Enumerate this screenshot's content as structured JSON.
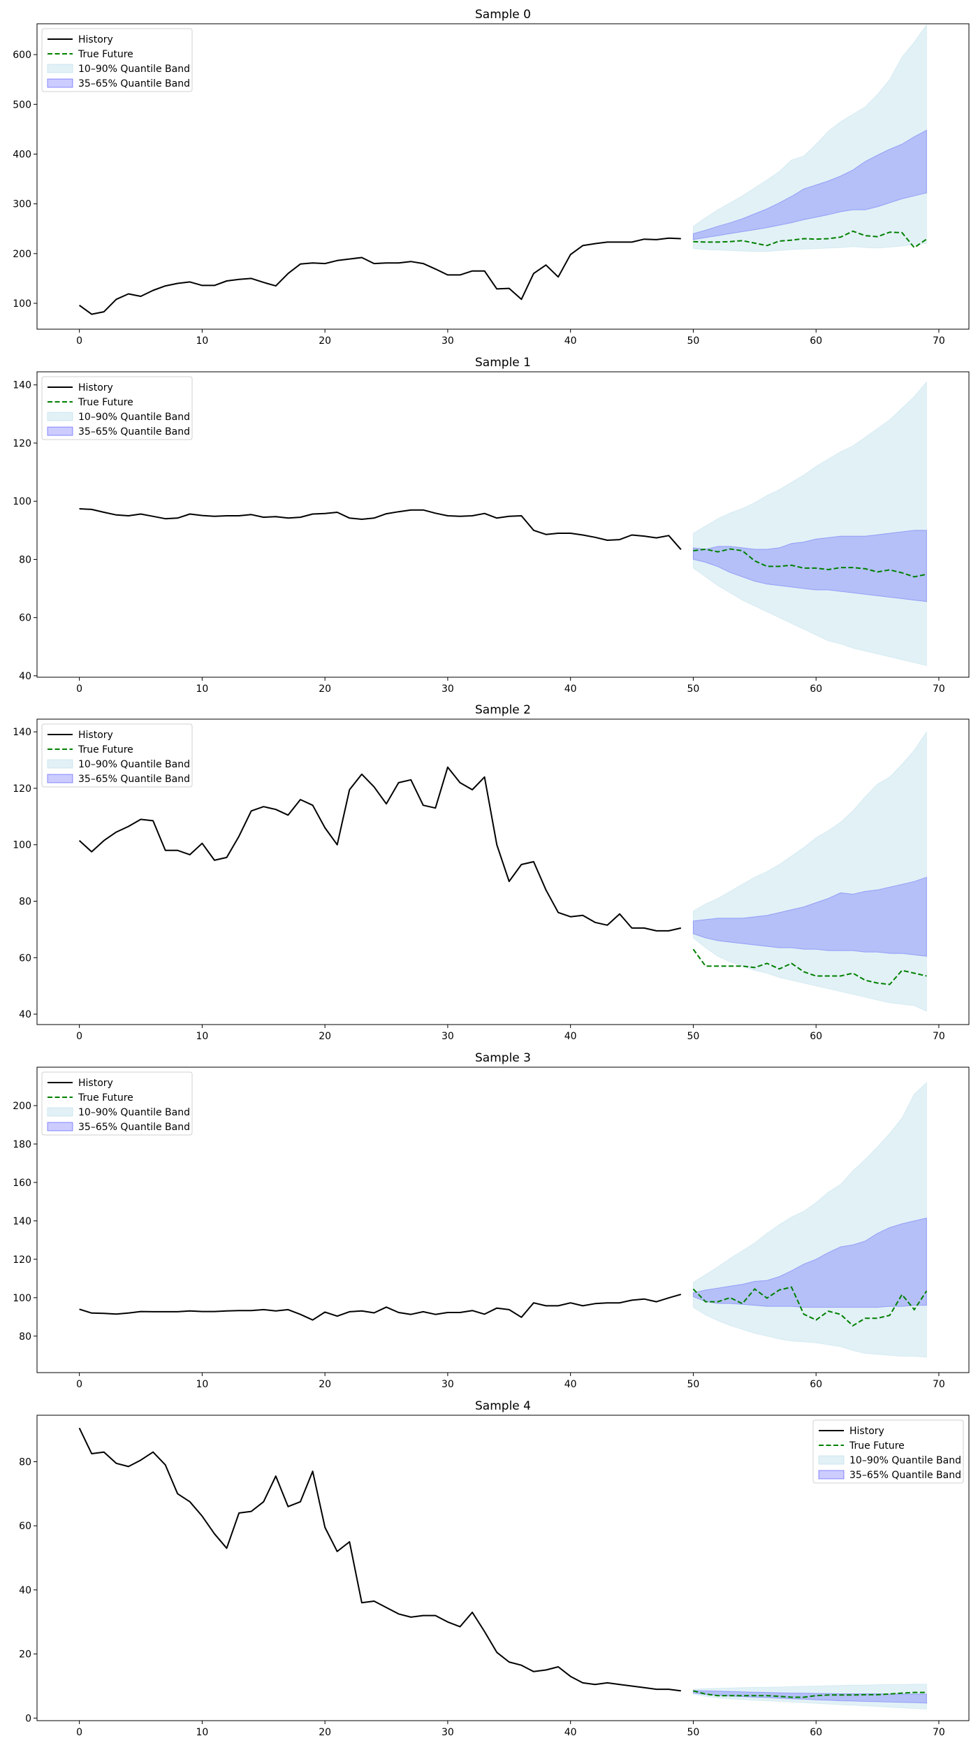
{
  "legend_labels": {
    "history": "History",
    "true_future": "True Future",
    "band_outer": "10–90% Quantile Band",
    "band_inner": "35–65% Quantile Band"
  },
  "colors": {
    "history": "#000000",
    "true_future": "#008000",
    "band_outer": "#add8e6",
    "band_inner": "#0000ff"
  },
  "chart_data": [
    {
      "type": "line",
      "title": "Sample 0",
      "xlim": [
        -3.45,
        72.45
      ],
      "ylim": [
        48,
        662
      ],
      "xticks": [
        0,
        10,
        20,
        30,
        40,
        50,
        60,
        70
      ],
      "yticks": [
        100,
        200,
        300,
        400,
        500,
        600
      ],
      "legend_position": "upper left",
      "history": {
        "x_start": 0,
        "values": [
          96,
          78,
          83,
          108,
          119,
          114,
          126,
          135,
          140,
          143,
          136,
          136,
          145,
          148,
          150,
          142,
          135,
          160,
          179,
          181,
          180,
          186,
          189,
          192,
          180,
          181,
          181,
          184,
          180,
          169,
          157,
          157,
          165,
          165,
          129,
          130,
          108,
          160,
          177,
          153,
          198,
          216,
          220,
          223,
          223,
          223,
          229,
          228,
          231,
          230
        ]
      },
      "true_future": {
        "x_start": 50,
        "values": [
          224,
          223,
          223,
          224,
          226,
          221,
          216,
          225,
          227,
          230,
          229,
          230,
          233,
          245,
          236,
          234,
          243,
          242,
          212,
          229
        ]
      },
      "band_10_90": {
        "x_start": 50,
        "lower": [
          210,
          208,
          207,
          206,
          205,
          204,
          204,
          206,
          208,
          209,
          210,
          211,
          212,
          214,
          212,
          211,
          213,
          215,
          218,
          220
        ],
        "upper": [
          255,
          272,
          288,
          302,
          316,
          332,
          348,
          365,
          388,
          396,
          420,
          446,
          465,
          480,
          495,
          520,
          550,
          595,
          625,
          660
        ]
      },
      "band_35_65": {
        "x_start": 50,
        "lower": [
          228,
          232,
          236,
          240,
          244,
          248,
          252,
          257,
          262,
          268,
          273,
          278,
          284,
          288,
          288,
          294,
          302,
          310,
          316,
          322
        ],
        "upper": [
          240,
          247,
          255,
          262,
          270,
          280,
          290,
          302,
          315,
          330,
          338,
          346,
          356,
          368,
          385,
          398,
          410,
          420,
          435,
          448
        ]
      }
    },
    {
      "type": "line",
      "title": "Sample 1",
      "xlim": [
        -3.45,
        72.45
      ],
      "ylim": [
        39.5,
        144.5
      ],
      "xticks": [
        0,
        10,
        20,
        30,
        40,
        50,
        60,
        70
      ],
      "yticks": [
        40,
        60,
        80,
        100,
        120,
        140
      ],
      "legend_position": "upper left",
      "history": {
        "x_start": 0,
        "values": [
          97.4,
          97.2,
          96.2,
          95.3,
          95.0,
          95.6,
          94.8,
          94.0,
          94.2,
          95.6,
          95.1,
          94.8,
          95.0,
          95.0,
          95.4,
          94.5,
          94.7,
          94.2,
          94.5,
          95.6,
          95.8,
          96.2,
          94.2,
          93.8,
          94.2,
          95.7,
          96.4,
          97.0,
          97.0,
          95.9,
          95.0,
          94.8,
          95.0,
          95.8,
          94.2,
          94.8,
          95.0,
          90.0,
          88.6,
          89.0,
          89.0,
          88.4,
          87.6,
          86.6,
          86.8,
          88.4,
          88.0,
          87.4,
          88.2,
          83.4
        ]
      },
      "true_future": {
        "x_start": 50,
        "values": [
          83.0,
          83.5,
          82.6,
          83.6,
          83.0,
          79.5,
          77.6,
          77.6,
          78.0,
          77.0,
          77.0,
          76.5,
          77.2,
          77.2,
          76.8,
          75.7,
          76.4,
          75.4,
          74.0,
          74.9
        ]
      },
      "band_10_90": {
        "x_start": 50,
        "lower": [
          77.0,
          74.0,
          71.0,
          68.5,
          66.0,
          64.0,
          62.0,
          60.0,
          58.0,
          56.0,
          54.0,
          52.0,
          51.0,
          49.5,
          48.5,
          47.5,
          46.5,
          45.5,
          44.5,
          43.5
        ],
        "upper": [
          89.0,
          91.5,
          94.0,
          96.0,
          97.5,
          99.5,
          102.0,
          104.0,
          106.5,
          109.0,
          112.0,
          114.5,
          117.0,
          119.0,
          122.0,
          125.0,
          128.0,
          132.0,
          136.0,
          141.0
        ]
      },
      "band_35_65": {
        "x_start": 50,
        "lower": [
          80.0,
          79.0,
          77.5,
          75.5,
          74.0,
          72.5,
          71.5,
          71.0,
          70.5,
          70.0,
          69.5,
          69.5,
          69.0,
          68.5,
          68.0,
          67.5,
          67.0,
          66.5,
          66.0,
          65.5
        ],
        "upper": [
          84.0,
          83.5,
          84.5,
          84.5,
          84.0,
          83.5,
          83.5,
          84.0,
          85.5,
          86.0,
          87.0,
          87.5,
          88.0,
          88.0,
          88.0,
          88.5,
          89.0,
          89.5,
          90.0,
          90.0
        ]
      }
    },
    {
      "type": "line",
      "title": "Sample 2",
      "xlim": [
        -3.45,
        72.45
      ],
      "ylim": [
        36.3,
        144.5
      ],
      "xticks": [
        0,
        10,
        20,
        30,
        40,
        50,
        60,
        70
      ],
      "yticks": [
        40,
        60,
        80,
        100,
        120,
        140
      ],
      "legend_position": "upper left",
      "history": {
        "x_start": 0,
        "values": [
          101.5,
          97.5,
          101.5,
          104.5,
          106.5,
          109.0,
          108.5,
          98.0,
          98.0,
          96.5,
          100.5,
          94.5,
          95.5,
          103.0,
          112.0,
          113.5,
          112.5,
          110.5,
          116.0,
          114.0,
          106.0,
          100.0,
          119.5,
          125.0,
          120.5,
          114.5,
          122.0,
          123.0,
          114.0,
          113.0,
          127.5,
          122.0,
          119.5,
          124.0,
          100.0,
          87.0,
          93.0,
          94.0,
          84.0,
          76.0,
          74.5,
          75.0,
          72.5,
          71.5,
          75.5,
          70.5,
          70.5,
          69.5,
          69.5,
          70.5
        ]
      },
      "true_future": {
        "x_start": 50,
        "values": [
          63.0,
          57.0,
          57.0,
          57.0,
          57.0,
          56.5,
          58.0,
          56.0,
          58.0,
          55.0,
          53.5,
          53.5,
          53.5,
          54.5,
          52.0,
          51.0,
          50.5,
          55.5,
          54.5,
          53.5
        ]
      },
      "band_10_90": {
        "x_start": 50,
        "lower": [
          67.0,
          63.5,
          60.5,
          58.5,
          57.0,
          55.5,
          54.5,
          53.0,
          52.0,
          51.0,
          50.0,
          49.0,
          48.0,
          47.0,
          46.0,
          45.0,
          44.0,
          43.5,
          43.0,
          41.0
        ],
        "upper": [
          76.5,
          79.0,
          81.0,
          83.5,
          86.0,
          88.5,
          90.5,
          93.0,
          96.0,
          99.0,
          102.5,
          105.0,
          108.0,
          112.0,
          117.0,
          121.5,
          124.0,
          128.5,
          133.5,
          140.0
        ]
      },
      "band_35_65": {
        "x_start": 50,
        "lower": [
          68.5,
          67.0,
          66.0,
          65.5,
          65.0,
          64.5,
          64.0,
          63.5,
          63.5,
          63.0,
          63.0,
          62.5,
          62.5,
          62.5,
          62.0,
          62.0,
          61.5,
          61.5,
          61.0,
          60.5
        ],
        "upper": [
          73.0,
          73.5,
          74.0,
          74.0,
          74.0,
          74.5,
          75.0,
          76.0,
          77.0,
          78.0,
          79.5,
          81.0,
          83.0,
          82.5,
          83.5,
          84.0,
          85.0,
          86.0,
          87.0,
          88.5
        ]
      }
    },
    {
      "type": "line",
      "title": "Sample 3",
      "xlim": [
        -3.45,
        72.45
      ],
      "ylim": [
        61,
        220
      ],
      "xticks": [
        0,
        10,
        20,
        30,
        40,
        50,
        60,
        70
      ],
      "yticks": [
        80,
        100,
        120,
        140,
        160,
        180,
        200
      ],
      "legend_position": "upper left",
      "history": {
        "x_start": 0,
        "values": [
          94.0,
          92.0,
          91.8,
          91.5,
          92.0,
          92.8,
          92.7,
          92.7,
          92.7,
          93.1,
          92.8,
          92.8,
          93.1,
          93.3,
          93.3,
          93.8,
          93.1,
          93.8,
          91.3,
          88.4,
          92.5,
          90.4,
          92.7,
          93.1,
          92.1,
          95.1,
          92.3,
          91.3,
          92.7,
          91.3,
          92.3,
          92.3,
          93.3,
          91.4,
          94.6,
          93.8,
          89.8,
          97.3,
          95.8,
          95.8,
          97.3,
          95.8,
          96.9,
          97.3,
          97.3,
          98.7,
          99.3,
          97.9,
          99.9,
          101.7
        ]
      },
      "true_future": {
        "x_start": 50,
        "values": [
          104.5,
          97.9,
          97.9,
          100.0,
          96.9,
          104.5,
          99.8,
          104.0,
          105.5,
          91.4,
          88.4,
          93.0,
          91.3,
          85.4,
          89.3,
          89.3,
          90.8,
          101.6,
          93.8,
          103.5
        ]
      },
      "band_10_90": {
        "x_start": 50,
        "lower": [
          95.0,
          91.0,
          88.0,
          85.5,
          83.5,
          81.5,
          80.0,
          78.5,
          77.5,
          77.0,
          76.5,
          75.5,
          74.5,
          72.5,
          71.0,
          70.5,
          70.0,
          69.5,
          69.5,
          69.0
        ],
        "upper": [
          108.0,
          112.0,
          116.0,
          120.5,
          124.5,
          128.5,
          133.5,
          138.0,
          142.0,
          145.0,
          149.5,
          155.0,
          159.0,
          166.0,
          172.0,
          178.5,
          185.5,
          193.5,
          206.0,
          212.0
        ]
      },
      "band_35_65": {
        "x_start": 50,
        "lower": [
          100.5,
          98.0,
          97.0,
          97.0,
          96.5,
          96.0,
          95.5,
          95.5,
          95.5,
          95.0,
          95.0,
          95.0,
          95.0,
          95.0,
          95.0,
          95.0,
          95.5,
          95.5,
          96.0,
          96.0
        ],
        "upper": [
          102.5,
          104.0,
          105.0,
          106.0,
          107.0,
          108.5,
          109.0,
          111.0,
          114.0,
          117.5,
          120.0,
          123.5,
          126.5,
          127.5,
          129.5,
          133.5,
          136.5,
          138.5,
          140.0,
          141.5
        ]
      }
    },
    {
      "type": "line",
      "title": "Sample 4",
      "xlim": [
        -3.45,
        72.45
      ],
      "ylim": [
        -0.8,
        94.5
      ],
      "xticks": [
        0,
        10,
        20,
        30,
        40,
        50,
        60,
        70
      ],
      "yticks": [
        0,
        20,
        40,
        60,
        80
      ],
      "legend_position": "upper right",
      "history": {
        "x_start": 0,
        "values": [
          90.5,
          82.5,
          83.0,
          79.5,
          78.5,
          80.5,
          83.0,
          79.0,
          70.0,
          67.5,
          63.0,
          57.5,
          53.0,
          64.0,
          64.5,
          67.5,
          75.5,
          66.0,
          67.5,
          77.0,
          59.5,
          52.0,
          55.0,
          36.0,
          36.5,
          34.5,
          32.5,
          31.5,
          32.0,
          32.0,
          30.0,
          28.5,
          33.0,
          27.0,
          20.5,
          17.5,
          16.5,
          14.5,
          15.0,
          16.0,
          13.0,
          11.0,
          10.5,
          11.0,
          10.5,
          10.0,
          9.5,
          9.0,
          9.0,
          8.5
        ]
      },
      "true_future": {
        "x_start": 50,
        "values": [
          8.5,
          7.5,
          7.0,
          7.0,
          7.0,
          7.0,
          7.0,
          6.8,
          6.5,
          6.5,
          7.0,
          7.2,
          7.2,
          7.2,
          7.3,
          7.3,
          7.5,
          7.8,
          8.0,
          8.0
        ]
      },
      "band_10_90": {
        "x_start": 50,
        "lower": [
          7.5,
          6.8,
          6.3,
          6.0,
          5.8,
          5.6,
          5.4,
          5.2,
          5.0,
          4.8,
          4.6,
          4.4,
          4.2,
          4.0,
          3.8,
          3.6,
          3.4,
          3.2,
          3.0,
          2.8
        ],
        "upper": [
          9.0,
          9.2,
          9.3,
          9.4,
          9.5,
          9.6,
          9.6,
          9.7,
          9.8,
          9.9,
          10.0,
          10.1,
          10.2,
          10.3,
          10.3,
          10.4,
          10.5,
          10.5,
          10.6,
          10.6
        ]
      },
      "band_35_65": {
        "x_start": 50,
        "lower": [
          7.8,
          7.4,
          7.1,
          6.9,
          6.7,
          6.5,
          6.4,
          6.2,
          6.0,
          5.9,
          5.7,
          5.6,
          5.4,
          5.3,
          5.2,
          5.1,
          5.0,
          4.9,
          4.8,
          4.7
        ],
        "upper": [
          8.6,
          8.5,
          8.4,
          8.3,
          8.2,
          8.1,
          8.0,
          7.9,
          7.8,
          7.8,
          7.7,
          7.7,
          7.6,
          7.6,
          7.6,
          7.6,
          7.5,
          7.5,
          7.5,
          7.5
        ]
      }
    }
  ]
}
